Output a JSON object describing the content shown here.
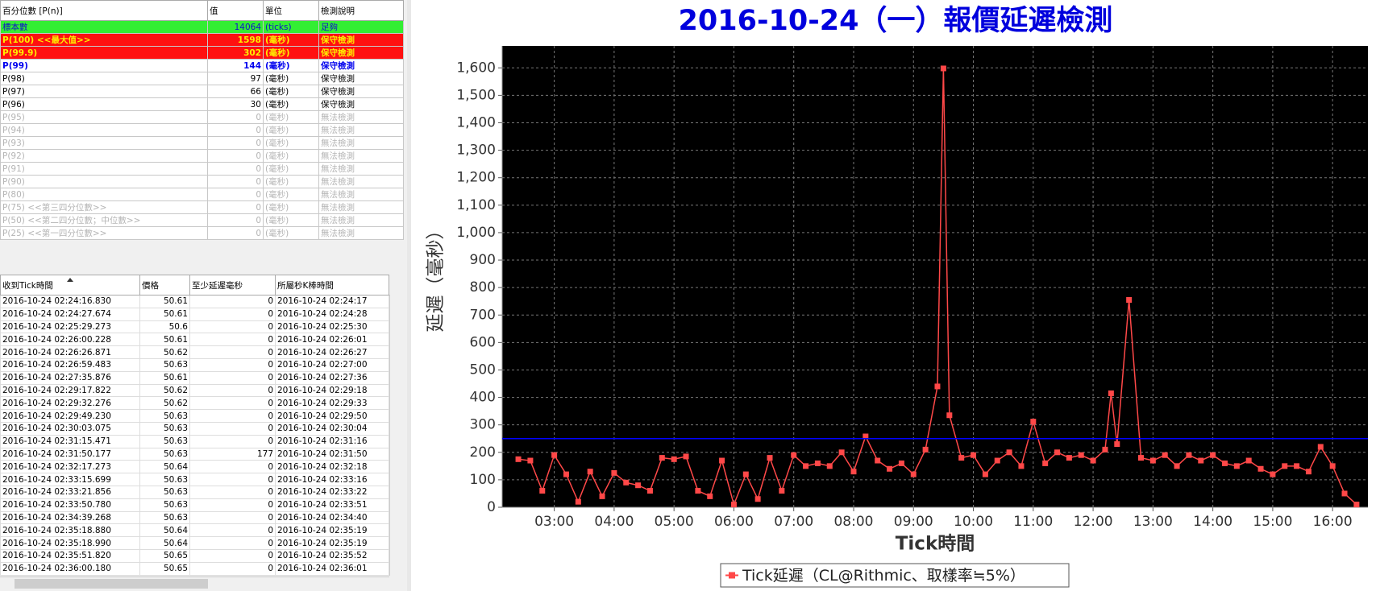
{
  "percentile_table": {
    "columns": [
      "百分位數 [P(n)]",
      "值",
      "單位",
      "檢測說明"
    ],
    "rows": [
      [
        "標本數",
        "14064",
        "(ticks)",
        "足夠"
      ],
      [
        "P(100)  <<最大值>>",
        "1598",
        "(毫秒)",
        "保守檢測"
      ],
      [
        "P(99.9)",
        "302",
        "(毫秒)",
        "保守檢測"
      ],
      [
        "P(99)",
        "144",
        "(毫秒)",
        "保守檢測"
      ],
      [
        "P(98)",
        "97",
        "(毫秒)",
        "保守檢測"
      ],
      [
        "P(97)",
        "66",
        "(毫秒)",
        "保守檢測"
      ],
      [
        "P(96)",
        "30",
        "(毫秒)",
        "保守檢測"
      ],
      [
        "P(95)",
        "0",
        "(毫秒)",
        "無法檢測"
      ],
      [
        "P(94)",
        "0",
        "(毫秒)",
        "無法檢測"
      ],
      [
        "P(93)",
        "0",
        "(毫秒)",
        "無法檢測"
      ],
      [
        "P(92)",
        "0",
        "(毫秒)",
        "無法檢測"
      ],
      [
        "P(91)",
        "0",
        "(毫秒)",
        "無法檢測"
      ],
      [
        "P(90)",
        "0",
        "(毫秒)",
        "無法檢測"
      ],
      [
        "P(80)",
        "0",
        "(毫秒)",
        "無法檢測"
      ],
      [
        "P(75)  <<第三四分位數>>",
        "0",
        "(毫秒)",
        "無法檢測"
      ],
      [
        "P(50)  <<第二四分位數；中位數>>",
        "0",
        "(毫秒)",
        "無法檢測"
      ],
      [
        "P(25)  <<第一四分位數>>",
        "0",
        "(毫秒)",
        "無法檢測"
      ]
    ]
  },
  "tick_table": {
    "columns": [
      "收到Tick時間",
      "價格",
      "至少延遲毫秒",
      "所屬秒K棒時間"
    ],
    "rows": [
      [
        "2016-10-24 02:24:16.830",
        "50.61",
        "0",
        "2016-10-24 02:24:17"
      ],
      [
        "2016-10-24 02:24:27.674",
        "50.61",
        "0",
        "2016-10-24 02:24:28"
      ],
      [
        "2016-10-24 02:25:29.273",
        "50.6",
        "0",
        "2016-10-24 02:25:30"
      ],
      [
        "2016-10-24 02:26:00.228",
        "50.61",
        "0",
        "2016-10-24 02:26:01"
      ],
      [
        "2016-10-24 02:26:26.871",
        "50.62",
        "0",
        "2016-10-24 02:26:27"
      ],
      [
        "2016-10-24 02:26:59.483",
        "50.63",
        "0",
        "2016-10-24 02:27:00"
      ],
      [
        "2016-10-24 02:27:35.876",
        "50.61",
        "0",
        "2016-10-24 02:27:36"
      ],
      [
        "2016-10-24 02:29:17.822",
        "50.62",
        "0",
        "2016-10-24 02:29:18"
      ],
      [
        "2016-10-24 02:29:32.276",
        "50.62",
        "0",
        "2016-10-24 02:29:33"
      ],
      [
        "2016-10-24 02:29:49.230",
        "50.63",
        "0",
        "2016-10-24 02:29:50"
      ],
      [
        "2016-10-24 02:30:03.075",
        "50.63",
        "0",
        "2016-10-24 02:30:04"
      ],
      [
        "2016-10-24 02:31:15.471",
        "50.63",
        "0",
        "2016-10-24 02:31:16"
      ],
      [
        "2016-10-24 02:31:50.177",
        "50.63",
        "177",
        "2016-10-24 02:31:50"
      ],
      [
        "2016-10-24 02:32:17.273",
        "50.64",
        "0",
        "2016-10-24 02:32:18"
      ],
      [
        "2016-10-24 02:33:15.699",
        "50.63",
        "0",
        "2016-10-24 02:33:16"
      ],
      [
        "2016-10-24 02:33:21.856",
        "50.63",
        "0",
        "2016-10-24 02:33:22"
      ],
      [
        "2016-10-24 02:33:50.780",
        "50.63",
        "0",
        "2016-10-24 02:33:51"
      ],
      [
        "2016-10-24 02:34:39.268",
        "50.63",
        "0",
        "2016-10-24 02:34:40"
      ],
      [
        "2016-10-24 02:35:18.880",
        "50.64",
        "0",
        "2016-10-24 02:35:19"
      ],
      [
        "2016-10-24 02:35:18.990",
        "50.64",
        "0",
        "2016-10-24 02:35:19"
      ],
      [
        "2016-10-24 02:35:51.820",
        "50.65",
        "0",
        "2016-10-24 02:35:52"
      ],
      [
        "2016-10-24 02:36:00.180",
        "50.65",
        "0",
        "2016-10-24 02:36:01"
      ]
    ]
  },
  "chart_data": {
    "type": "line",
    "title": "2016-10-24（一）報價延遲檢測",
    "title_color": "#0000dd",
    "x_label": "Tick時間",
    "y_label": "延遲（毫秒）",
    "background": "#000000",
    "grid": true,
    "legend": "bottom",
    "xlim": [
      2.13,
      16.59
    ],
    "ylim": [
      0,
      1680
    ],
    "xticks": [
      {
        "value": 3,
        "label": "03:00"
      },
      {
        "value": 4,
        "label": "04:00"
      },
      {
        "value": 5,
        "label": "05:00"
      },
      {
        "value": 6,
        "label": "06:00"
      },
      {
        "value": 7,
        "label": "07:00"
      },
      {
        "value": 8,
        "label": "08:00"
      },
      {
        "value": 9,
        "label": "09:00"
      },
      {
        "value": 10,
        "label": "10:00"
      },
      {
        "value": 11,
        "label": "11:00"
      },
      {
        "value": 12,
        "label": "12:00"
      },
      {
        "value": 13,
        "label": "13:00"
      },
      {
        "value": 14,
        "label": "14:00"
      },
      {
        "value": 15,
        "label": "15:00"
      },
      {
        "value": 16,
        "label": "16:00"
      }
    ],
    "yticks": [
      0,
      100,
      200,
      300,
      400,
      500,
      600,
      700,
      800,
      900,
      {
        "value": 1000,
        "label": "1,000"
      },
      {
        "value": 1100,
        "label": "1,100"
      },
      {
        "value": 1200,
        "label": "1,200"
      },
      {
        "value": 1300,
        "label": "1,300"
      },
      {
        "value": 1400,
        "label": "1,400"
      },
      {
        "value": 1500,
        "label": "1,500"
      },
      {
        "value": 1600,
        "label": "1,600"
      }
    ],
    "reference_line": {
      "value": 250,
      "color": "#0000ff"
    },
    "x": [
      2.4,
      2.6,
      2.8,
      3.0,
      3.2,
      3.4,
      3.6,
      3.8,
      4.0,
      4.2,
      4.4,
      4.6,
      4.8,
      5.0,
      5.2,
      5.4,
      5.6,
      5.8,
      6.0,
      6.2,
      6.4,
      6.6,
      6.8,
      7.0,
      7.2,
      7.4,
      7.6,
      7.8,
      8.0,
      8.2,
      8.4,
      8.6,
      8.8,
      9.0,
      9.2,
      9.4,
      9.5,
      9.6,
      9.8,
      10.0,
      10.2,
      10.4,
      10.6,
      10.8,
      11.0,
      11.2,
      11.4,
      11.6,
      11.8,
      12.0,
      12.2,
      12.3,
      12.4,
      12.6,
      12.8,
      13.0,
      13.2,
      13.4,
      13.6,
      13.8,
      14.0,
      14.2,
      14.4,
      14.6,
      14.8,
      15.0,
      15.2,
      15.4,
      15.6,
      15.8,
      16.0,
      16.2,
      16.4
    ],
    "series": [
      {
        "name": "Tick延遲（CL@Rithmic、取樣率≒5%）",
        "color": "#ff4848",
        "values": [
          175,
          170,
          60,
          190,
          120,
          20,
          130,
          40,
          125,
          90,
          80,
          60,
          180,
          175,
          185,
          60,
          40,
          170,
          10,
          120,
          30,
          180,
          60,
          190,
          150,
          160,
          150,
          200,
          130,
          258,
          170,
          140,
          160,
          120,
          210,
          440,
          1598,
          335,
          180,
          190,
          120,
          170,
          200,
          150,
          312,
          160,
          200,
          180,
          190,
          170,
          210,
          415,
          230,
          755,
          180,
          170,
          190,
          150,
          190,
          170,
          190,
          160,
          150,
          170,
          140,
          120,
          150,
          150,
          130,
          220,
          150,
          50,
          10
        ]
      }
    ]
  }
}
